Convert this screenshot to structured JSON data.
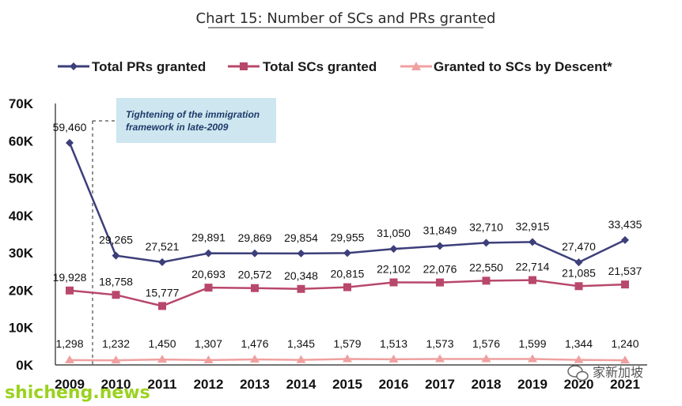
{
  "chart_data": {
    "type": "line",
    "title": "Chart 15: Number of SCs and PRs granted",
    "categories": [
      "2009",
      "2010",
      "2011",
      "2012",
      "2013",
      "2014",
      "2015",
      "2016",
      "2017",
      "2018",
      "2019",
      "2020",
      "2021"
    ],
    "ylim": [
      0,
      70000
    ],
    "yticks": [
      0,
      10000,
      20000,
      30000,
      40000,
      50000,
      60000,
      70000
    ],
    "ytick_labels": [
      "0K",
      "10K",
      "20K",
      "30K",
      "40K",
      "50K",
      "60K",
      "70K"
    ],
    "legend_position": "top",
    "grid": false,
    "series": [
      {
        "name": "Total PRs granted",
        "color": "#3d3f7a",
        "marker": "diamond",
        "values": [
          59460,
          29265,
          27521,
          29891,
          29869,
          29854,
          29955,
          31050,
          31849,
          32710,
          32915,
          27470,
          33435
        ],
        "labels": [
          "59,460",
          "29,265",
          "27,521",
          "29,891",
          "29,869",
          "29,854",
          "29,955",
          "31,050",
          "31,849",
          "32,710",
          "32,915",
          "27,470",
          "33,435"
        ]
      },
      {
        "name": "Total SCs granted",
        "color": "#b8486b",
        "marker": "square",
        "values": [
          19928,
          18758,
          15777,
          20693,
          20572,
          20348,
          20815,
          22102,
          22076,
          22550,
          22714,
          21085,
          21537
        ],
        "labels": [
          "19,928",
          "18,758",
          "15,777",
          "20,693",
          "20,572",
          "20,348",
          "20,815",
          "22,102",
          "22,076",
          "22,550",
          "22,714",
          "21,085",
          "21,537"
        ]
      },
      {
        "name": "Granted to SCs by Descent*",
        "color": "#f0a0a0",
        "marker": "triangle",
        "values": [
          1298,
          1232,
          1450,
          1307,
          1476,
          1345,
          1579,
          1513,
          1573,
          1576,
          1599,
          1344,
          1240
        ],
        "labels": [
          "1,298",
          "1,232",
          "1,450",
          "1,307",
          "1,476",
          "1,345",
          "1,579",
          "1,513",
          "1,573",
          "1,576",
          "1,599",
          "1,344",
          "1,240"
        ]
      }
    ],
    "annotation": {
      "text_line1": "Tightening of the immigration",
      "text_line2": "framework in late-2009",
      "box_color": "#cde6ef"
    }
  },
  "watermark": {
    "left_text": "shicheng.news",
    "right_text": "家新加坡",
    "icon": "wechat-icon"
  }
}
